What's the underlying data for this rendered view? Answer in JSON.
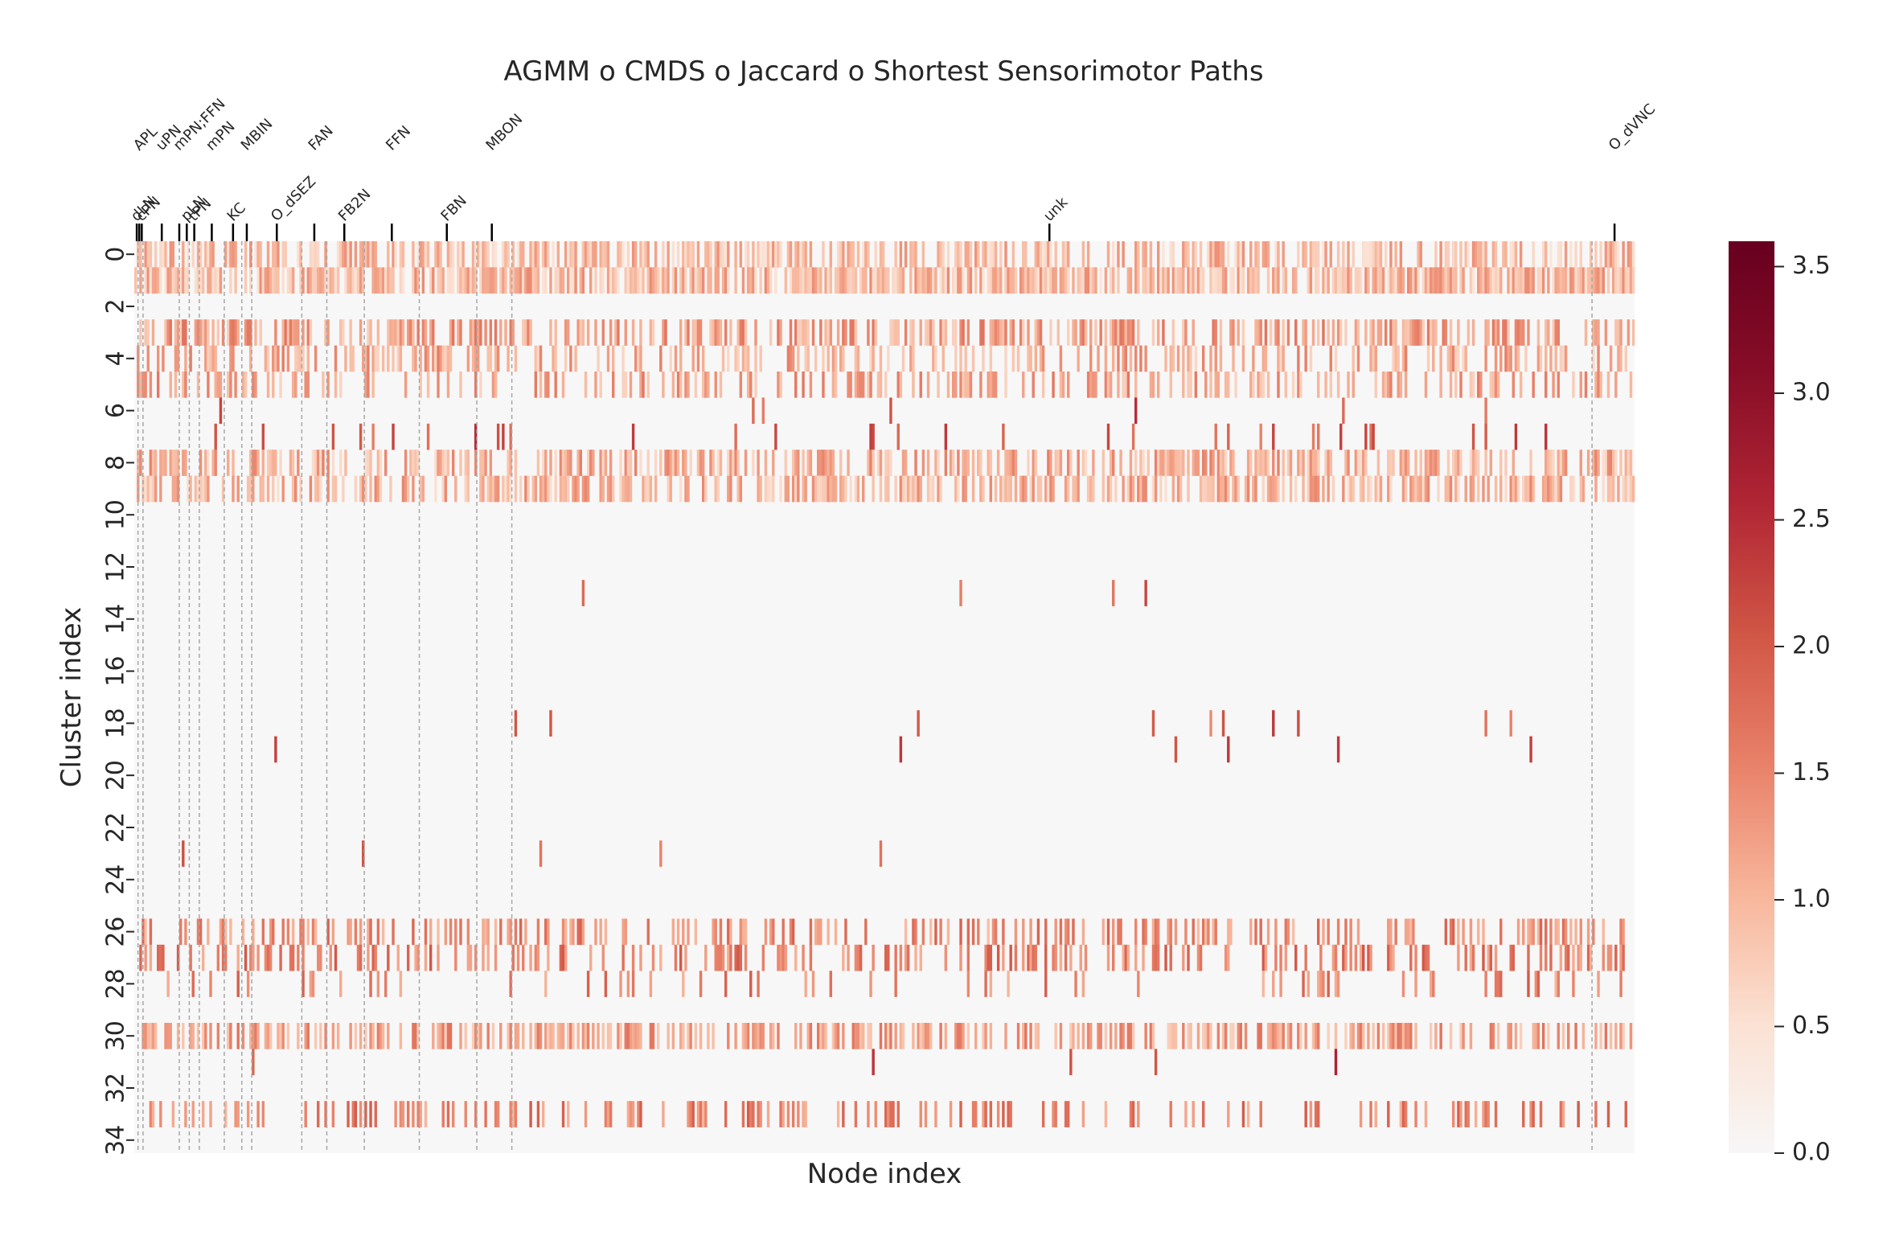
{
  "chart_data": {
    "type": "heatmap",
    "title": "AGMM o CMDS o Jaccard o Shortest Sensorimotor Paths",
    "xlabel": "Node index",
    "ylabel": "Cluster index",
    "n_rows": 35,
    "n_cols": 600,
    "y_ticks": [
      0,
      2,
      4,
      6,
      8,
      10,
      12,
      14,
      16,
      18,
      20,
      22,
      24,
      26,
      28,
      30,
      32,
      34
    ],
    "y_tick_labels": [
      "0",
      "2",
      "4",
      "6",
      "8",
      "10",
      "12",
      "14",
      "16",
      "18",
      "20",
      "22",
      "24",
      "26",
      "28",
      "30",
      "32",
      "34"
    ],
    "colorbar": {
      "min": 0.0,
      "max": 3.6,
      "ticks": [
        0.0,
        0.5,
        1.0,
        1.5,
        2.0,
        2.5,
        3.0,
        3.5
      ],
      "tick_labels": [
        "0.0",
        "0.5",
        "1.0",
        "1.5",
        "2.0",
        "2.5",
        "3.0",
        "3.5"
      ],
      "colormap": "RdBu-like reds",
      "colors": [
        "#f7f7f7",
        "#fbe1d3",
        "#f7b59a",
        "#e88068",
        "#d05545",
        "#b02534",
        "#870d27",
        "#67001f"
      ]
    },
    "column_groups": [
      {
        "label": "dLN",
        "col": 1.0,
        "row": "lower"
      },
      {
        "label": "APL",
        "col": 2.0,
        "row": "upper"
      },
      {
        "label": "cPN",
        "col": 3.0,
        "row": "lower"
      },
      {
        "label": "uPN",
        "col": 11.0,
        "row": "upper"
      },
      {
        "label": "mPN;FFN",
        "col": 18.0,
        "row": "upper"
      },
      {
        "label": "pLN",
        "col": 21.0,
        "row": "lower"
      },
      {
        "label": "tPN",
        "col": 24.0,
        "row": "lower"
      },
      {
        "label": "mPN",
        "col": 31.0,
        "row": "upper"
      },
      {
        "label": "KC",
        "col": 39.5,
        "row": "lower"
      },
      {
        "label": "MBIN",
        "col": 45.0,
        "row": "upper"
      },
      {
        "label": "O_dSEZ",
        "col": 57.0,
        "row": "lower"
      },
      {
        "label": "FAN",
        "col": 72.0,
        "row": "upper"
      },
      {
        "label": "FB2N",
        "col": 84.0,
        "row": "lower"
      },
      {
        "label": "FFN",
        "col": 103.0,
        "row": "upper"
      },
      {
        "label": "FBN",
        "col": 125.0,
        "row": "lower"
      },
      {
        "label": "MBON",
        "col": 143.0,
        "row": "upper"
      },
      {
        "label": "unk",
        "col": 366.0,
        "row": "lower"
      },
      {
        "label": "O_dVNC",
        "col": 592.0,
        "row": "upper"
      }
    ],
    "group_boundaries": [
      1.5,
      3.5,
      18,
      22,
      26,
      36,
      43,
      47,
      67,
      77,
      92,
      114,
      137,
      151,
      583
    ],
    "row_density": [
      0.55,
      0.78,
      0.0,
      0.5,
      0.33,
      0.38,
      0.01,
      0.04,
      0.48,
      0.55,
      0.0,
      0.0,
      0.0,
      0.01,
      0.0,
      0.0,
      0.0,
      0.0,
      0.01,
      0.01,
      0.0,
      0.0,
      0.0,
      0.01,
      0.0,
      0.0,
      0.3,
      0.34,
      0.13,
      0.0,
      0.48,
      0.01,
      0.0,
      0.28,
      0.0
    ],
    "row_level": [
      0.9,
      0.95,
      0,
      1.2,
      1.1,
      1.15,
      2.0,
      2.0,
      1.05,
      1.0,
      0,
      0,
      2.2,
      2.0,
      2.0,
      2.0,
      2.0,
      2.0,
      1.9,
      2.0,
      0,
      0,
      2.0,
      2.0,
      2.0,
      2.0,
      1.4,
      1.55,
      1.5,
      2.0,
      1.2,
      2.3,
      2.0,
      1.5,
      0
    ]
  }
}
